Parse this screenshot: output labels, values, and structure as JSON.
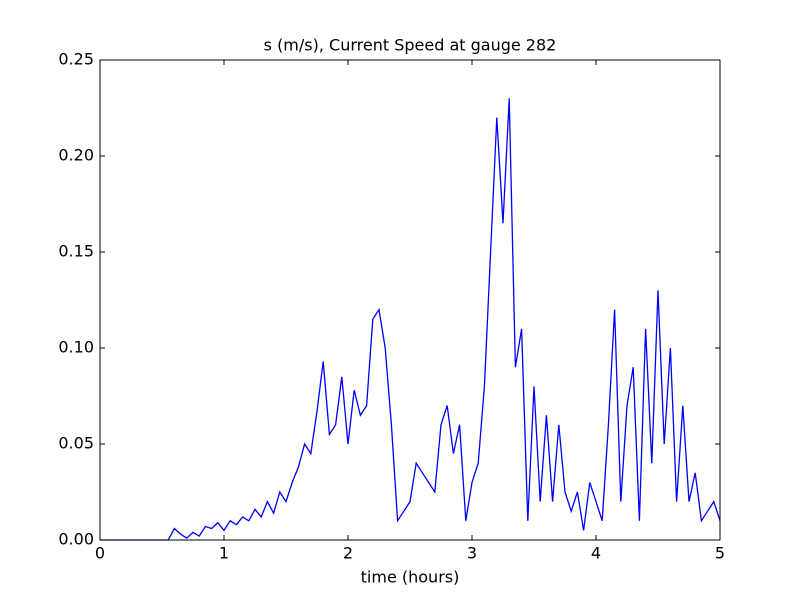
{
  "chart_data": {
    "type": "line",
    "title": "s (m/s), Current Speed at gauge 282",
    "x_label": "time (hours)",
    "x": [
      0,
      0.05,
      0.1,
      0.15,
      0.2,
      0.25,
      0.3,
      0.35,
      0.4,
      0.45,
      0.5,
      0.55,
      0.6,
      0.65,
      0.7,
      0.75,
      0.8,
      0.85,
      0.9,
      0.95,
      1.0,
      1.05,
      1.1,
      1.15,
      1.2,
      1.25,
      1.3,
      1.35,
      1.4,
      1.45,
      1.5,
      1.55,
      1.6,
      1.65,
      1.7,
      1.75,
      1.8,
      1.85,
      1.9,
      1.95,
      2.0,
      2.05,
      2.1,
      2.15,
      2.2,
      2.25,
      2.3,
      2.35,
      2.4,
      2.45,
      2.5,
      2.55,
      2.6,
      2.65,
      2.7,
      2.75,
      2.8,
      2.85,
      2.9,
      2.95,
      3.0,
      3.05,
      3.1,
      3.15,
      3.2,
      3.25,
      3.3,
      3.35,
      3.4,
      3.45,
      3.5,
      3.55,
      3.6,
      3.65,
      3.7,
      3.75,
      3.8,
      3.85,
      3.9,
      3.95,
      4.0,
      4.05,
      4.1,
      4.15,
      4.2,
      4.25,
      4.3,
      4.35,
      4.4,
      4.45,
      4.5,
      4.55,
      4.6,
      4.65,
      4.7,
      4.75,
      4.8,
      4.85,
      4.9,
      4.95,
      5.0
    ],
    "series": [
      {
        "name": "s",
        "color": "#0000ff",
        "values": [
          0,
          0,
          0,
          0,
          0,
          0,
          0,
          0,
          0,
          0,
          0,
          0,
          0.006,
          0.003,
          0.001,
          0.004,
          0.002,
          0.007,
          0.006,
          0.009,
          0.005,
          0.01,
          0.008,
          0.012,
          0.01,
          0.016,
          0.012,
          0.02,
          0.014,
          0.025,
          0.02,
          0.03,
          0.038,
          0.05,
          0.045,
          0.067,
          0.093,
          0.055,
          0.06,
          0.085,
          0.05,
          0.078,
          0.065,
          0.07,
          0.115,
          0.12,
          0.1,
          0.06,
          0.01,
          0.015,
          0.02,
          0.04,
          0.035,
          0.03,
          0.025,
          0.06,
          0.07,
          0.045,
          0.06,
          0.01,
          0.03,
          0.04,
          0.08,
          0.15,
          0.22,
          0.165,
          0.23,
          0.09,
          0.11,
          0.01,
          0.08,
          0.02,
          0.065,
          0.02,
          0.06,
          0.025,
          0.015,
          0.025,
          0.005,
          0.03,
          0.02,
          0.01,
          0.06,
          0.12,
          0.02,
          0.07,
          0.09,
          0.01,
          0.11,
          0.04,
          0.13,
          0.05,
          0.1,
          0.02,
          0.07,
          0.02,
          0.035,
          0.01,
          0.015,
          0.02,
          0.01
        ]
      }
    ],
    "xlim": [
      0,
      5
    ],
    "xticks": [
      0,
      1,
      2,
      3,
      4,
      5
    ],
    "ylim": [
      0,
      0.25
    ],
    "yticks": [
      {
        "value": 0,
        "label": "0.00"
      },
      {
        "value": 0.05,
        "label": "0.05"
      },
      {
        "value": 0.1,
        "label": "0.10"
      },
      {
        "value": 0.15,
        "label": "0.15"
      },
      {
        "value": 0.2,
        "label": "0.20"
      },
      {
        "value": 0.25,
        "label": "0.25"
      }
    ]
  }
}
